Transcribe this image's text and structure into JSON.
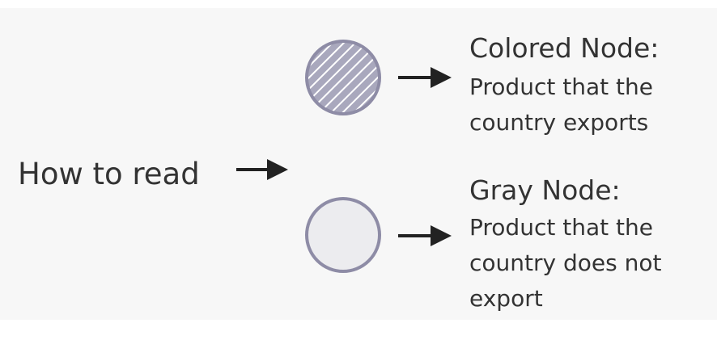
{
  "intro": {
    "label": "How to read"
  },
  "colored_node": {
    "title": "Colored Node:",
    "description": [
      "Product that the",
      "country exports"
    ],
    "fill_color": "#a9a8bd",
    "stripe_color": "#ffffff",
    "border_color": "#8e8ca6"
  },
  "gray_node": {
    "title": "Gray Node:",
    "description": [
      "Product that the",
      "country does not",
      "export"
    ],
    "fill_color": "#ececef",
    "border_color": "#8e8ca6"
  },
  "colors": {
    "text": "#333333",
    "arrow": "#222222",
    "panel_background": "#f7f7f7"
  }
}
